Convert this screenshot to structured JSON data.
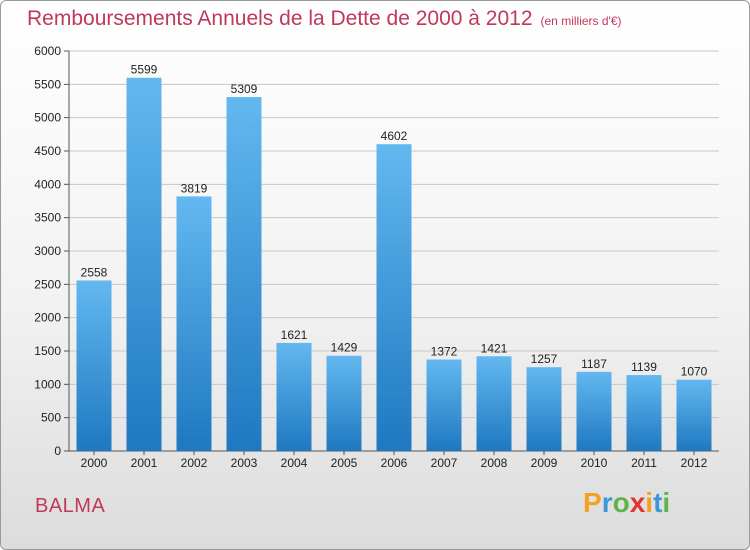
{
  "title": "Remboursements Annuels de la Dette de 2000 à 2012",
  "subtitle": "(en milliers d'€)",
  "commune": "BALMA",
  "logo": {
    "text": "Proxiti",
    "letters": [
      "P",
      "r",
      "o",
      "x",
      "i",
      "t",
      "i"
    ],
    "colors": [
      "#f5a020",
      "#3a9ad9",
      "#5cb547",
      "#e0362c",
      "#f5a020",
      "#3a9ad9",
      "#5cb547"
    ]
  },
  "colors": {
    "title": "#c0385a",
    "bar_light": "#63b8f0",
    "bar_dark": "#1f78c0",
    "grid": "#c8c8c8"
  },
  "chart_data": {
    "type": "bar",
    "categories": [
      "2000",
      "2001",
      "2002",
      "2003",
      "2004",
      "2005",
      "2006",
      "2007",
      "2008",
      "2009",
      "2010",
      "2011",
      "2012"
    ],
    "values": [
      2558,
      5599,
      3819,
      5309,
      1621,
      1429,
      4602,
      1372,
      1421,
      1257,
      1187,
      1139,
      1070
    ],
    "yticks": [
      "0",
      "500",
      "1000",
      "1500",
      "2000",
      "2500",
      "3000",
      "3500",
      "4000",
      "4500",
      "5000",
      "5500",
      "6000"
    ],
    "ylim": [
      0,
      6000
    ],
    "grid": true,
    "legend": "none"
  }
}
